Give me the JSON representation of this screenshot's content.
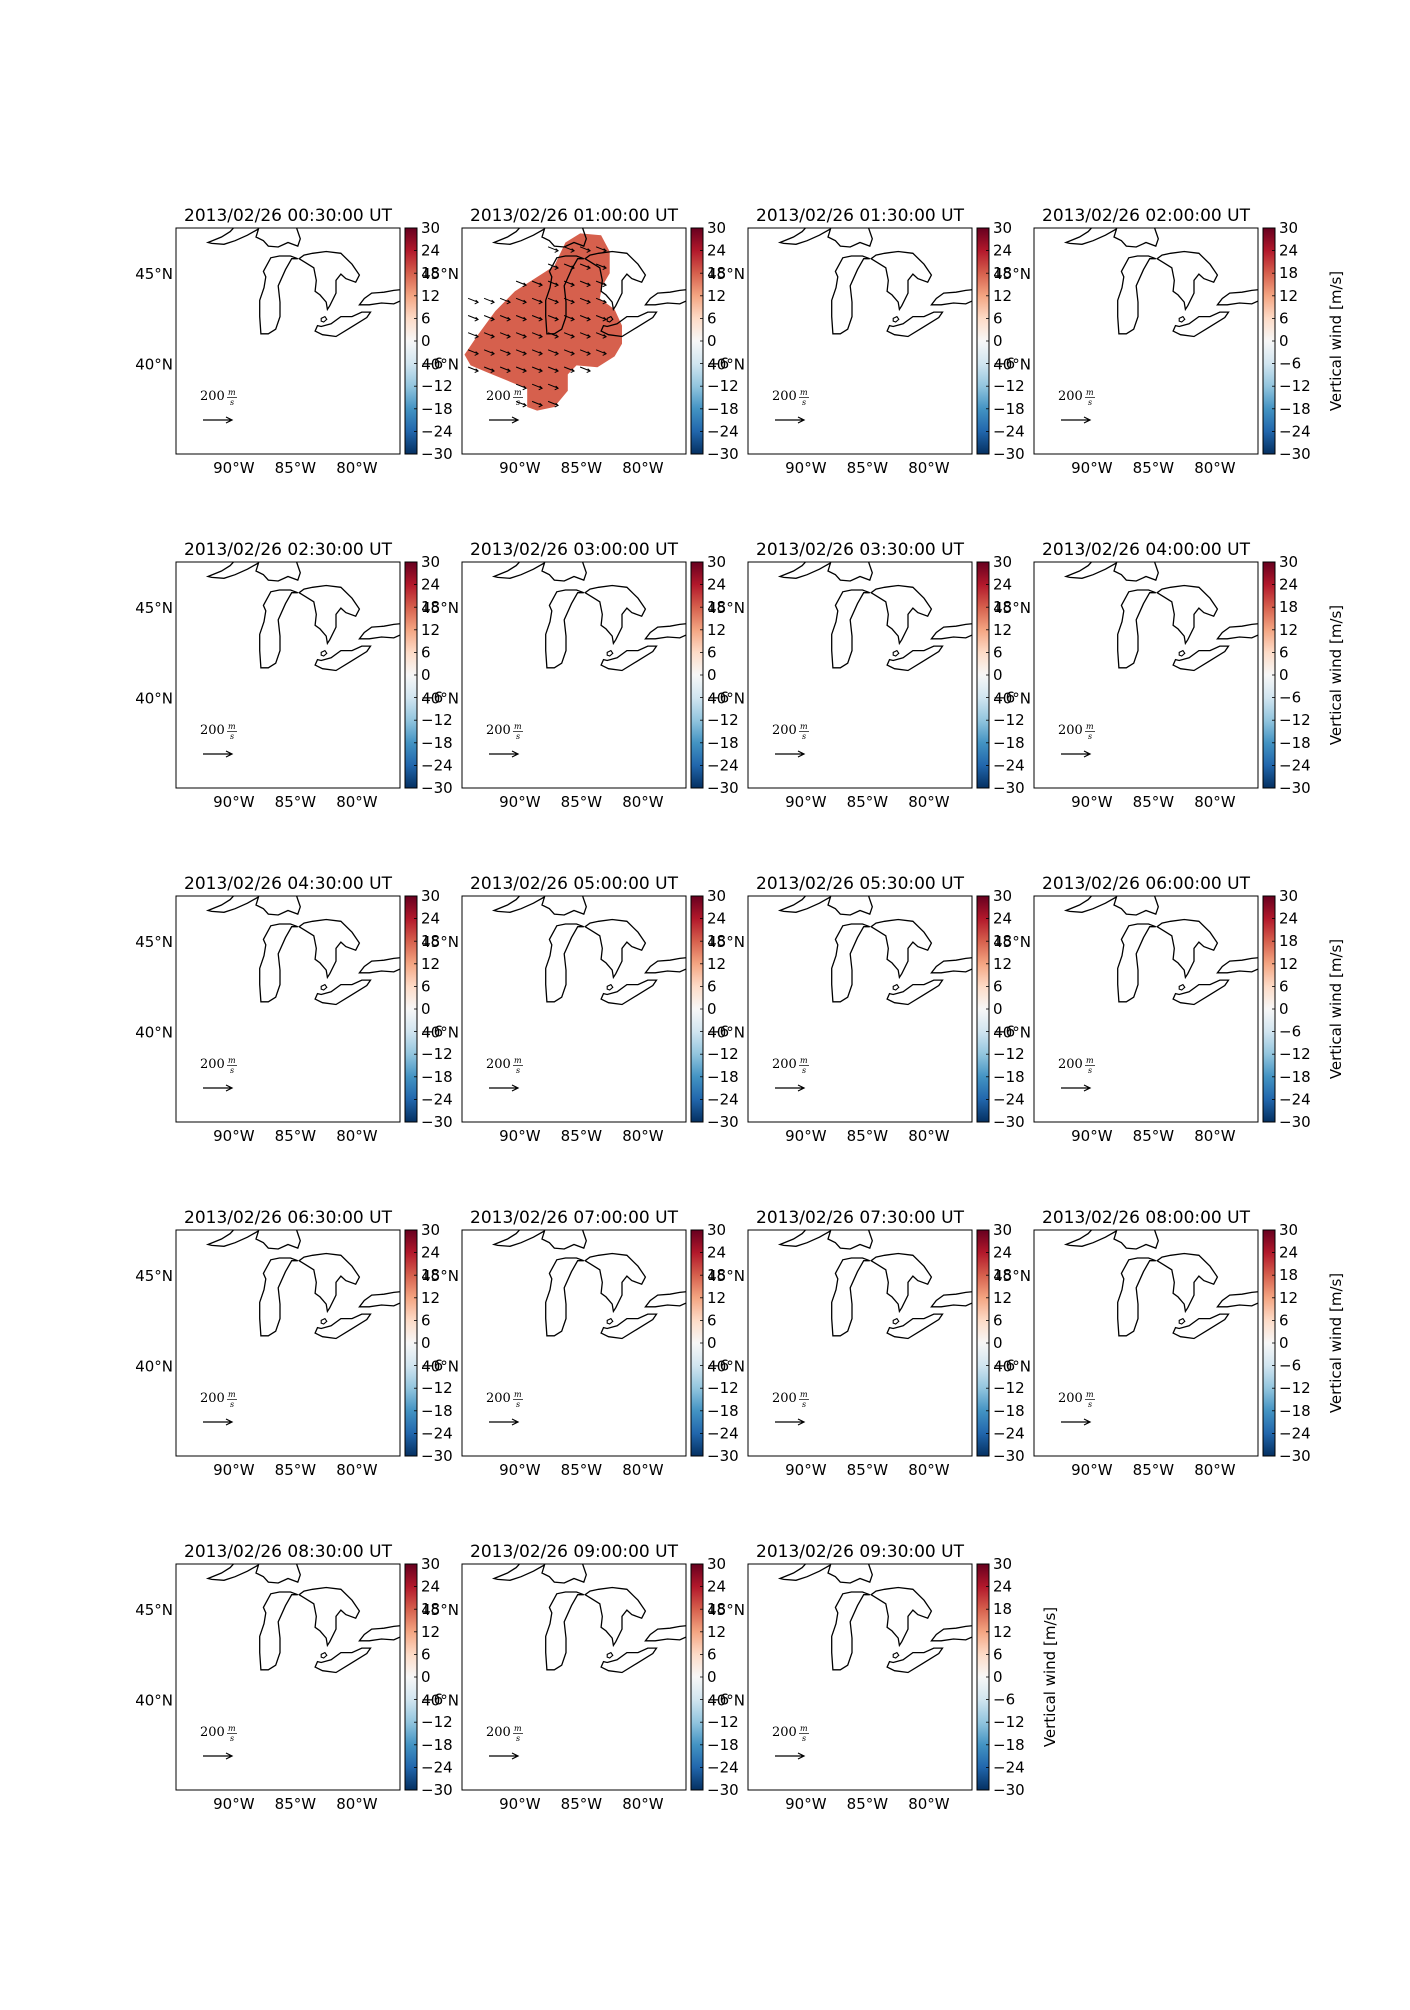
{
  "figure": {
    "panels": [
      {
        "title": "2013/02/26 00:30:00 UT",
        "has_data": false,
        "cbar_label": ""
      },
      {
        "title": "2013/02/26 01:00:00 UT",
        "has_data": true,
        "cbar_label": ""
      },
      {
        "title": "2013/02/26 01:30:00 UT",
        "has_data": false,
        "cbar_label": ""
      },
      {
        "title": "2013/02/26 02:00:00 UT",
        "has_data": false,
        "cbar_label": "Vertical wind [m/s]"
      },
      {
        "title": "2013/02/26 02:30:00 UT",
        "has_data": false,
        "cbar_label": ""
      },
      {
        "title": "2013/02/26 03:00:00 UT",
        "has_data": false,
        "cbar_label": ""
      },
      {
        "title": "2013/02/26 03:30:00 UT",
        "has_data": false,
        "cbar_label": ""
      },
      {
        "title": "2013/02/26 04:00:00 UT",
        "has_data": false,
        "cbar_label": "Vertical wind [m/s]"
      },
      {
        "title": "2013/02/26 04:30:00 UT",
        "has_data": false,
        "cbar_label": ""
      },
      {
        "title": "2013/02/26 05:00:00 UT",
        "has_data": false,
        "cbar_label": ""
      },
      {
        "title": "2013/02/26 05:30:00 UT",
        "has_data": false,
        "cbar_label": ""
      },
      {
        "title": "2013/02/26 06:00:00 UT",
        "has_data": false,
        "cbar_label": "Vertical wind [m/s]"
      },
      {
        "title": "2013/02/26 06:30:00 UT",
        "has_data": false,
        "cbar_label": ""
      },
      {
        "title": "2013/02/26 07:00:00 UT",
        "has_data": false,
        "cbar_label": ""
      },
      {
        "title": "2013/02/26 07:30:00 UT",
        "has_data": false,
        "cbar_label": ""
      },
      {
        "title": "2013/02/26 08:00:00 UT",
        "has_data": false,
        "cbar_label": "Vertical wind [m/s]"
      },
      {
        "title": "2013/02/26 08:30:00 UT",
        "has_data": false,
        "cbar_label": ""
      },
      {
        "title": "2013/02/26 09:00:00 UT",
        "has_data": false,
        "cbar_label": ""
      },
      {
        "title": "2013/02/26 09:30:00 UT",
        "has_data": false,
        "cbar_label": "Vertical wind [m/s]"
      }
    ],
    "lat_ticks": [
      "45°N",
      "40°N"
    ],
    "lon_ticks": [
      "90°W",
      "85°W",
      "80°W"
    ],
    "cbar_ticks": [
      "30",
      "24",
      "18",
      "12",
      "6",
      "0",
      "−6",
      "−12",
      "−18",
      "−24",
      "−30"
    ],
    "quiver_key": {
      "value": "200",
      "unit_num": "m",
      "unit_den": "s"
    },
    "colors": {
      "data_fill": "#d6604d",
      "cmap": [
        "#67001f",
        "#b2182b",
        "#d6604d",
        "#f4a582",
        "#fddbc7",
        "#f7f7f7",
        "#d1e5f0",
        "#92c5de",
        "#4393c3",
        "#2166ac",
        "#053061"
      ]
    }
  }
}
